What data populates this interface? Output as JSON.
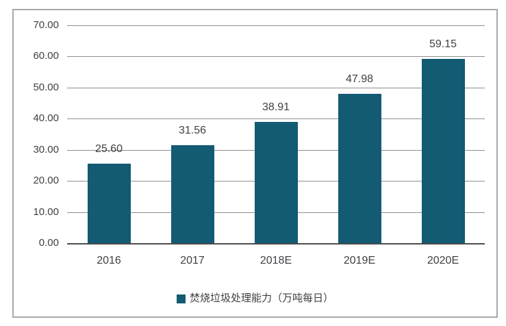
{
  "colors": {
    "bar": "#135a73",
    "gridline": "#8f8f8f",
    "axis_line": "#4d4d4d",
    "text": "#3f3f44",
    "frame_border": "#a8a8a8",
    "background": "#ffffff"
  },
  "chart_data": {
    "type": "bar",
    "title": "",
    "xlabel": "",
    "ylabel": "",
    "categories": [
      "2016",
      "2017",
      "2018E",
      "2019E",
      "2020E"
    ],
    "series": [
      {
        "name": "焚烧垃圾处理能力（万吨每日）",
        "values": [
          25.6,
          31.56,
          38.91,
          47.98,
          59.15
        ]
      }
    ],
    "value_labels": [
      "25.60",
      "31.56",
      "38.91",
      "47.98",
      "59.15"
    ],
    "ylim": [
      0,
      70
    ],
    "ytick_step": 10,
    "ytick_labels": [
      "70.00",
      "60.00",
      "50.00",
      "40.00",
      "30.00",
      "20.00",
      "10.00",
      "0.00"
    ],
    "grid": true,
    "legend_position": "bottom",
    "legend": [
      "焚烧垃圾处理能力（万吨每日）"
    ]
  }
}
